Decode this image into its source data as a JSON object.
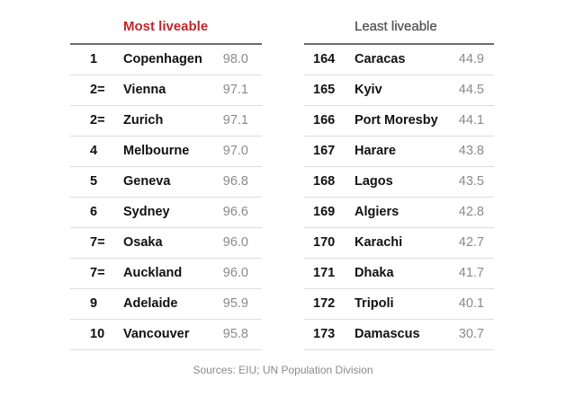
{
  "chart_data": {
    "type": "table",
    "tables": [
      {
        "title": "Most liveable",
        "rows": [
          {
            "rank": "1",
            "city": "Copenhagen",
            "score": "98.0"
          },
          {
            "rank": "2=",
            "city": "Vienna",
            "score": "97.1"
          },
          {
            "rank": "2=",
            "city": "Zurich",
            "score": "97.1"
          },
          {
            "rank": "4",
            "city": "Melbourne",
            "score": "97.0"
          },
          {
            "rank": "5",
            "city": "Geneva",
            "score": "96.8"
          },
          {
            "rank": "6",
            "city": "Sydney",
            "score": "96.6"
          },
          {
            "rank": "7=",
            "city": "Osaka",
            "score": "96.0"
          },
          {
            "rank": "7=",
            "city": "Auckland",
            "score": "96.0"
          },
          {
            "rank": "9",
            "city": "Adelaide",
            "score": "95.9"
          },
          {
            "rank": "10",
            "city": "Vancouver",
            "score": "95.8"
          }
        ]
      },
      {
        "title": "Least liveable",
        "rows": [
          {
            "rank": "164",
            "city": "Caracas",
            "score": "44.9"
          },
          {
            "rank": "165",
            "city": "Kyiv",
            "score": "44.5"
          },
          {
            "rank": "166",
            "city": "Port Moresby",
            "score": "44.1"
          },
          {
            "rank": "167",
            "city": "Harare",
            "score": "43.8"
          },
          {
            "rank": "168",
            "city": "Lagos",
            "score": "43.5"
          },
          {
            "rank": "169",
            "city": "Algiers",
            "score": "42.8"
          },
          {
            "rank": "170",
            "city": "Karachi",
            "score": "42.7"
          },
          {
            "rank": "171",
            "city": "Dhaka",
            "score": "41.7"
          },
          {
            "rank": "172",
            "city": "Tripoli",
            "score": "40.1"
          },
          {
            "rank": "173",
            "city": "Damascus",
            "score": "30.7"
          }
        ]
      }
    ],
    "source": "Sources: EIU; UN Population Division"
  },
  "colors": {
    "accent": "#c0262b"
  }
}
